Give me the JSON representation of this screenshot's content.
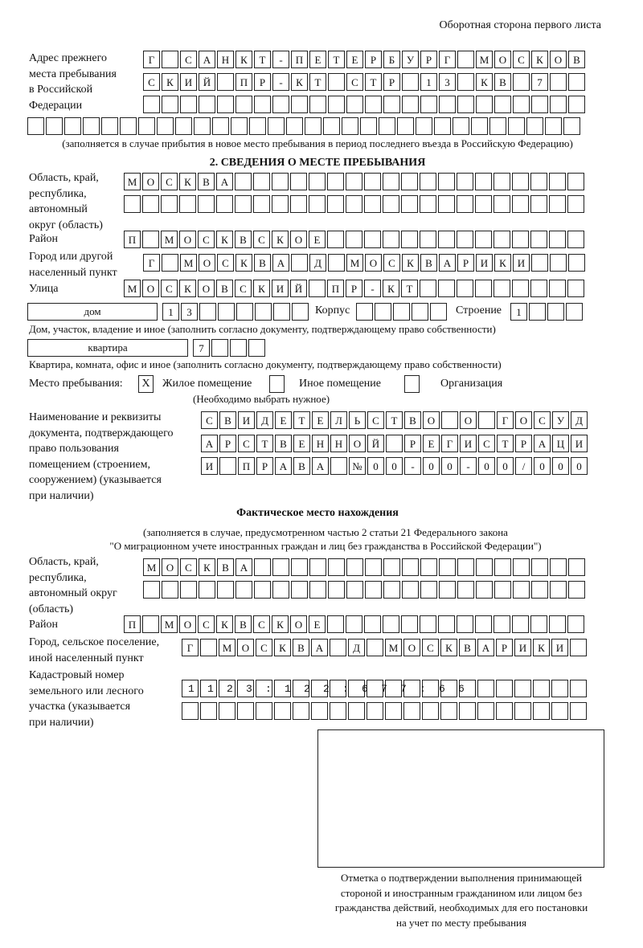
{
  "header": "Оборотная сторона первого листа",
  "prev_address": {
    "label": "Адрес прежнего\nместа пребывания\nв Российской\nФедерации",
    "rows": [
      "Г САНКТ-ПЕТЕРБУРГ МОСКОВ",
      "СКИЙ ПР-КТ СТР 13 КВ 7  ",
      "                        ",
      "                              "
    ],
    "caption": "(заполняется в случае прибытия в новое место пребывания в период последнего въезда в Российскую Федерацию)"
  },
  "section2": {
    "title": "2. СВЕДЕНИЯ О МЕСТЕ ПРЕБЫВАНИЯ",
    "region_label": "Область, край,\nреспублика,\nавтономный\nокруг (область)",
    "region_rows": [
      "МОСКВА                   ",
      "                         "
    ],
    "district_label": "Район",
    "district": "П МОСКВСКОЕ              ",
    "city_label": "Город или другой\nнаселенный пункт",
    "city": "Г МОСКВА Д МОСКВАРИКИ   ",
    "street_label": "Улица",
    "street": "МОСКОВСКИЙ ПР-КТ         ",
    "house_type": "дом",
    "house_number": "13      ",
    "korpus_label": "Корпус",
    "korpus": "     ",
    "building_label": "Строение",
    "building": "1   ",
    "house_caption": "Дом, участок, владение и иное (заполнить согласно документу, подтверждающему право собственности)",
    "flat_type": "квартира",
    "flat_number": "7   ",
    "flat_caption": "Квартира, комната, офис и иное (заполнить согласно документу, подтверждающему право собственности)",
    "stay_place_label": "Место пребывания:",
    "stay_options": [
      {
        "label": "Жилое помещение",
        "mark": "X"
      },
      {
        "label": "Иное помещение",
        "mark": ""
      },
      {
        "label": "Организация",
        "mark": ""
      }
    ],
    "choose_note": "(Необходимо выбрать нужное)",
    "doc_label": "Наименование и реквизиты\nдокумента, подтверждающего\nправо пользования\nпомещением (строением,\nсооружением) (указывается\nпри наличии)",
    "doc_rows": [
      "СВИДЕТЕЛЬСТВО О ГОСУД",
      "АРСТВЕННОЙ РЕГИСТРАЦИ",
      "И ПРАВА №00-00-00/000"
    ]
  },
  "actual": {
    "title": "Фактическое место нахождения",
    "caption1": "(заполняется в случае, предусмотренном частью 2 статьи 21 Федерального закона",
    "caption2": "\"О миграционном учете иностранных граждан и лиц без гражданства в Российской Федерации\")",
    "region_label": "Область, край,\nреспублика,\nавтономный округ\n(область)",
    "region_rows": [
      "МОСКВА                  ",
      "                        "
    ],
    "district_label": "Район",
    "district": "П МОСКВСКОЕ              ",
    "city_label": "Город, сельское поселение,\nиной населенный пункт",
    "city": "Г МОСКВА Д МОСКВАРИКИ ",
    "cadastral_label": "Кадастровый номер\nземельного или лесного\nучастка (указывается\nпри наличии)",
    "cadastral_rows": [
      "1123:122:677:66        ",
      "                      "
    ]
  },
  "stamp_caption": "Отметка о подтверждении выполнения принимающей\nстороной и иностранным гражданином или лицом без\nгражданства действий, необходимых для его постановки\nна учет по месту пребывания"
}
